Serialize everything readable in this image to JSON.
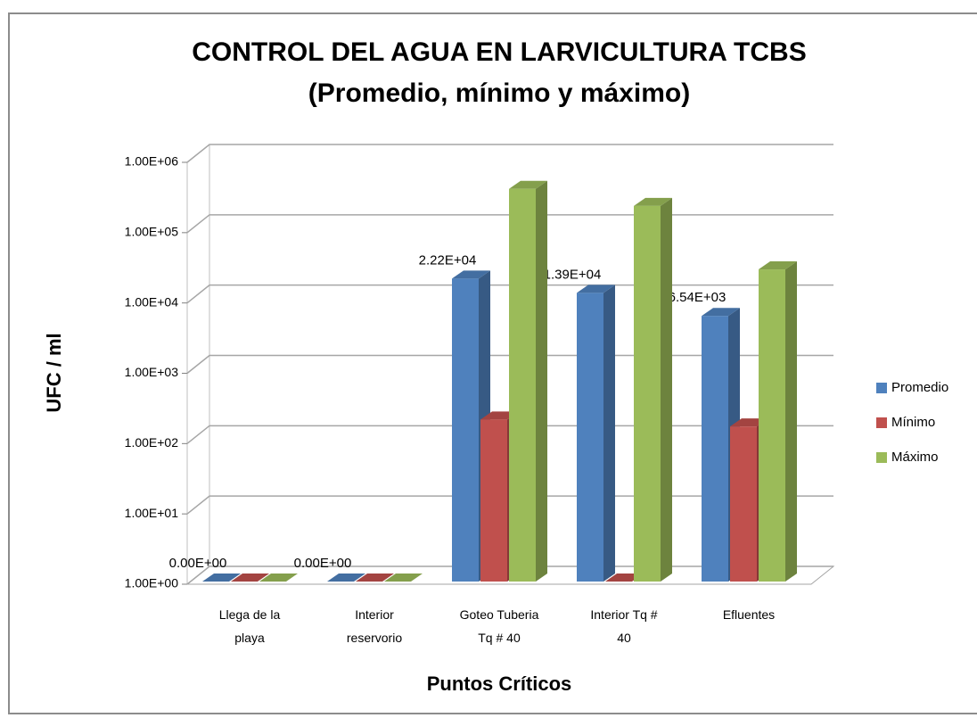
{
  "chart_data": {
    "type": "bar3d",
    "title": "CONTROL DEL AGUA EN LARVICULTURA TCBS",
    "subtitle": "(Promedio, mínimo y máximo)",
    "y_label": "UFC / ml",
    "x_label": "Puntos Críticos",
    "categories": [
      "Llega de la playa",
      "Interior reservorio",
      "Goteo Tuberia Tq # 40",
      "Interior Tq # 40",
      "Efluentes"
    ],
    "series": [
      {
        "name": "Promedio",
        "color": "#4f81bd",
        "values": [
          0,
          0,
          22200,
          13900,
          6540
        ],
        "value_labels": [
          "0.00E+00",
          "0.00E+00",
          "2.22E+04",
          "1.39E+04",
          "6.54E+03"
        ]
      },
      {
        "name": "Mínimo",
        "color": "#c0504d",
        "values": [
          0,
          0,
          220,
          1,
          175
        ]
      },
      {
        "name": "Máximo",
        "color": "#9bbb59",
        "values": [
          0,
          0,
          420000,
          240000,
          30000
        ]
      }
    ],
    "log_scale": true,
    "ylim": [
      1,
      1000000
    ],
    "yticks": [
      {
        "value": 1,
        "label": "1.00E+00"
      },
      {
        "value": 10,
        "label": "1.00E+01"
      },
      {
        "value": 100,
        "label": "1.00E+02"
      },
      {
        "value": 1000,
        "label": "1.00E+03"
      },
      {
        "value": 10000,
        "label": "1.00E+04"
      },
      {
        "value": 100000,
        "label": "1.00E+05"
      },
      {
        "value": 1000000,
        "label": "1.00E+06"
      }
    ],
    "grid": true,
    "legend": "right"
  }
}
